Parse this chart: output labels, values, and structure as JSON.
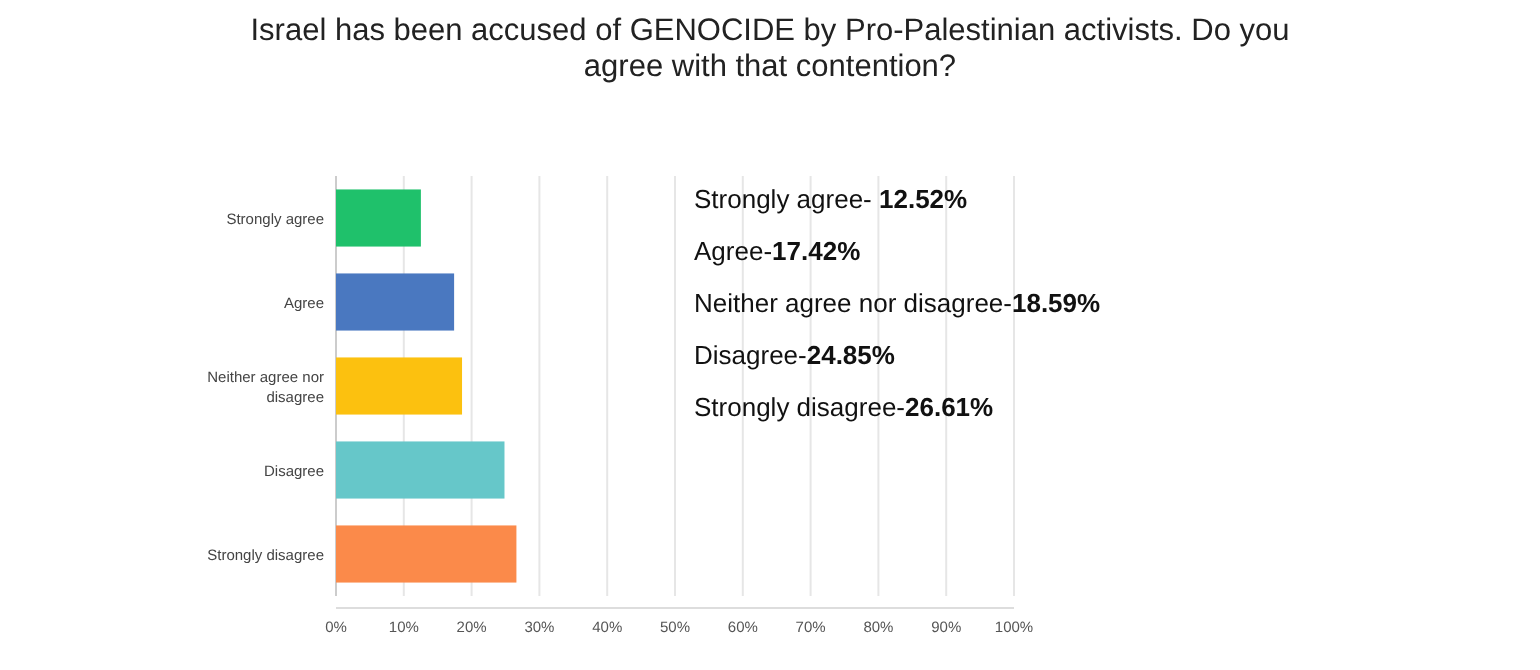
{
  "chart_data": {
    "type": "bar",
    "orientation": "horizontal",
    "title": "Israel has been accused of GENOCIDE by Pro-Palestinian activists. Do you agree with that contention?",
    "categories": [
      "Strongly agree",
      "Agree",
      "Neither agree nor disagree",
      "Disagree",
      "Strongly disagree"
    ],
    "values": [
      12.52,
      17.42,
      18.59,
      24.85,
      26.61
    ],
    "colors": [
      "#1fc16b",
      "#4a78c0",
      "#fcc10f",
      "#66c7c9",
      "#fb8a4a"
    ],
    "xlim": [
      0,
      100
    ],
    "xticks": [
      {
        "value": 0,
        "label": "0%"
      },
      {
        "value": 10,
        "label": "10%"
      },
      {
        "value": 20,
        "label": "20%"
      },
      {
        "value": 30,
        "label": "30%"
      },
      {
        "value": 40,
        "label": "40%"
      },
      {
        "value": 50,
        "label": "50%"
      },
      {
        "value": 60,
        "label": "60%"
      },
      {
        "value": 70,
        "label": "70%"
      },
      {
        "value": 80,
        "label": "80%"
      },
      {
        "value": 90,
        "label": "90%"
      },
      {
        "value": 100,
        "label": "100%"
      }
    ],
    "grid": "x",
    "annotations": [
      "Strongly agree- 12.52%",
      "Agree-17.42%",
      "Neither agree nor disagree-18.59%",
      "Disagree-24.85%",
      "Strongly disagree-26.61%"
    ]
  }
}
